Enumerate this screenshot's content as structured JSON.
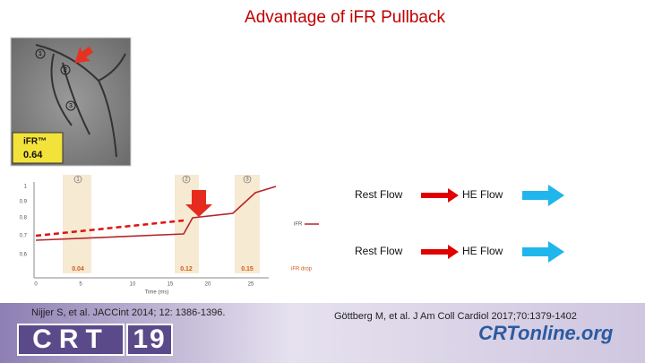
{
  "header": {
    "title": "Advantage of iFR Pullback"
  },
  "angiogram": {
    "markers": [
      "1",
      "2",
      "3"
    ],
    "ifr_label": "iFR™",
    "ifr_value": "0.64"
  },
  "pullback_graph": {
    "yticks": [
      "1",
      "0.9",
      "0.8",
      "0.7",
      "0.6"
    ],
    "xticks": [
      "0",
      "5",
      "10",
      "15",
      "20",
      "25"
    ],
    "x_label": "Time (ms)",
    "zones": [
      "1",
      "2",
      "3"
    ],
    "drops": [
      "0.04",
      "0.12",
      "0.15"
    ],
    "legend_line": "iFR",
    "legend_drop": "iFR drop"
  },
  "comparison": {
    "rows": [
      [
        "Rest Flow",
        "HE Flow"
      ],
      [
        "Rest Flow",
        "HE Flow"
      ]
    ]
  },
  "citations": [
    "Nijjer S, et al. JACCint 2014;  12: 1386-1396.",
    "Göttberg M, et al. J Am Coll Cardiol 2017;70:1379-1402"
  ],
  "footer": {
    "logo_left": [
      "CRT",
      "19"
    ],
    "logo_right": "CRTonline.org"
  }
}
